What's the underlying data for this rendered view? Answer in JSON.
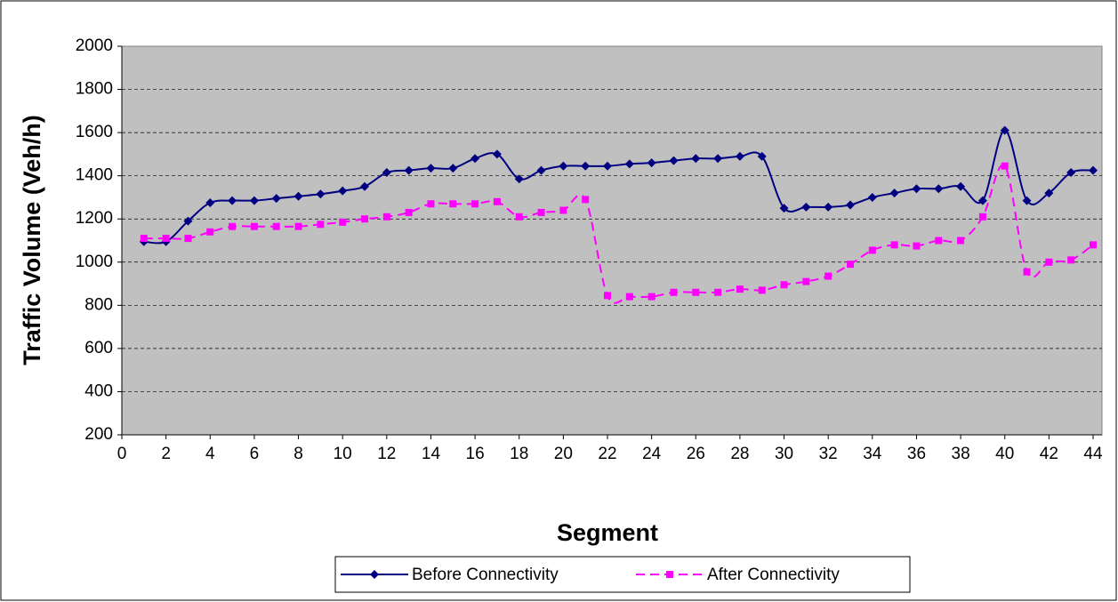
{
  "chart_data": {
    "type": "line",
    "x_label": "Segment",
    "y_label": "Traffic Volume (Veh/h)",
    "x": [
      1,
      2,
      3,
      4,
      5,
      6,
      7,
      8,
      9,
      10,
      11,
      12,
      13,
      14,
      15,
      16,
      17,
      18,
      19,
      20,
      21,
      22,
      23,
      24,
      25,
      26,
      27,
      28,
      29,
      30,
      31,
      32,
      33,
      34,
      35,
      36,
      37,
      38,
      39,
      40,
      41,
      42,
      43,
      44
    ],
    "series": [
      {
        "name": "Before Connectivity",
        "color": "#000080",
        "dash": false,
        "marker": "diamond",
        "values": [
          1095,
          1095,
          1190,
          1275,
          1285,
          1285,
          1295,
          1305,
          1315,
          1330,
          1350,
          1415,
          1425,
          1435,
          1435,
          1480,
          1500,
          1385,
          1425,
          1445,
          1445,
          1445,
          1455,
          1460,
          1470,
          1480,
          1480,
          1490,
          1490,
          1250,
          1255,
          1255,
          1265,
          1300,
          1320,
          1340,
          1340,
          1350,
          1285,
          1610,
          1285,
          1320,
          1415,
          1425
        ]
      },
      {
        "name": "After Connectivity",
        "color": "#ff00ff",
        "dash": true,
        "marker": "square",
        "values": [
          1110,
          1110,
          1110,
          1140,
          1165,
          1165,
          1165,
          1165,
          1175,
          1185,
          1200,
          1210,
          1230,
          1270,
          1270,
          1270,
          1280,
          1210,
          1230,
          1240,
          1290,
          845,
          840,
          840,
          860,
          860,
          860,
          875,
          870,
          895,
          910,
          935,
          990,
          1055,
          1080,
          1075,
          1100,
          1100,
          1210,
          1445,
          955,
          1000,
          1010,
          1080
        ]
      }
    ],
    "xlim": [
      0,
      44
    ],
    "xticks": [
      0,
      2,
      4,
      6,
      8,
      10,
      12,
      14,
      16,
      18,
      20,
      22,
      24,
      26,
      28,
      30,
      32,
      34,
      36,
      38,
      40,
      42,
      44
    ],
    "ylim": [
      200,
      2000
    ],
    "yticks": [
      200,
      400,
      600,
      800,
      1000,
      1200,
      1400,
      1600,
      1800,
      2000
    ],
    "grid": true,
    "legend": "bottom"
  }
}
